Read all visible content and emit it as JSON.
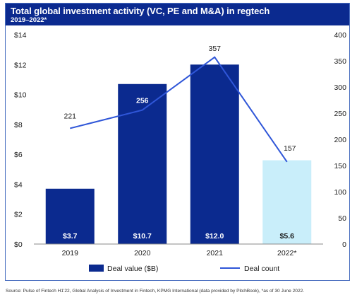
{
  "title": "Total global investment activity (VC, PE and M&A) in regtech",
  "subtitle": "2019–2022*",
  "source": "Source: Pulse of Fintech H1'22, Global Analysis of Investment in Fintech, KPMG International (data provided by PitchBook), *as of 30 June 2022.",
  "chart_data": {
    "type": "bar",
    "categories": [
      "2019",
      "2020",
      "2021",
      "2022*"
    ],
    "series": [
      {
        "name": "Deal value ($B)",
        "type": "bar",
        "axis": "left",
        "values": [
          3.7,
          10.7,
          12.0,
          5.6
        ],
        "labels": [
          "$3.7",
          "$10.7",
          "$12.0",
          "$5.6"
        ],
        "colors": [
          "#0b2a8f",
          "#0b2a8f",
          "#0b2a8f",
          "#c9eefa"
        ],
        "label_colors": [
          "#ffffff",
          "#ffffff",
          "#ffffff",
          "#1a1a1a"
        ]
      },
      {
        "name": "Deal count",
        "type": "line",
        "axis": "right",
        "values": [
          221,
          256,
          357,
          157
        ],
        "labels": [
          "221",
          "256",
          "357",
          "157"
        ],
        "color": "#2f56d8"
      }
    ],
    "y_left": {
      "ylim": [
        0,
        14
      ],
      "ticks": [
        0,
        2,
        4,
        6,
        8,
        10,
        12,
        14
      ],
      "tick_labels": [
        "$0",
        "$2",
        "$4",
        "$6",
        "$8",
        "$10",
        "$12",
        "$14"
      ]
    },
    "y_right": {
      "ylim": [
        0,
        400
      ],
      "ticks": [
        0,
        50,
        100,
        150,
        200,
        250,
        300,
        350,
        400
      ],
      "tick_labels": [
        "0",
        "50",
        "100",
        "150",
        "200",
        "250",
        "300",
        "350",
        "400"
      ]
    },
    "grid": false,
    "legend_position": "bottom"
  }
}
